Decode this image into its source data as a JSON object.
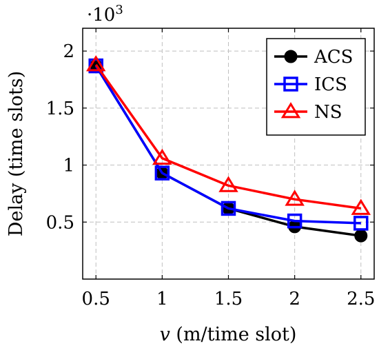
{
  "chart_data": {
    "type": "line",
    "xlabel_var": "v",
    "xlabel_rest": " (m/time slot)",
    "ylabel": "Delay (time slots)",
    "y_multiplier": "·10",
    "y_multiplier_exp": "3",
    "x": [
      0.5,
      1,
      1.5,
      2,
      2.5
    ],
    "x_tick_labels": [
      "0.5",
      "1",
      "1.5",
      "2",
      "2.5"
    ],
    "y_ticks": [
      0.5,
      1,
      1.5,
      2
    ],
    "y_tick_labels": [
      "0.5",
      "1",
      "1.5",
      "2"
    ],
    "xlim": [
      0.4,
      2.6
    ],
    "ylim": [
      0,
      2.2
    ],
    "grid": true,
    "legend_position": "top-right",
    "series": [
      {
        "name": "ACS",
        "values": [
          1.87,
          0.93,
          0.62,
          0.46,
          0.38
        ],
        "color": "#000000",
        "marker": "circle"
      },
      {
        "name": "ICS",
        "values": [
          1.87,
          0.93,
          0.62,
          0.51,
          0.49
        ],
        "color": "#0000ff",
        "marker": "square"
      },
      {
        "name": "NS",
        "values": [
          1.88,
          1.06,
          0.82,
          0.7,
          0.62
        ],
        "color": "#ff0000",
        "marker": "triangle"
      }
    ]
  }
}
